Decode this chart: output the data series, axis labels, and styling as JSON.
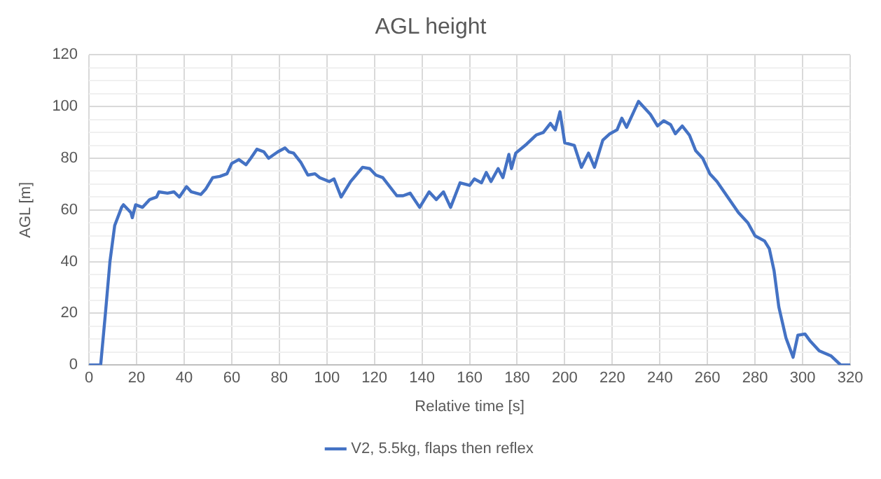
{
  "chart_data": {
    "type": "line",
    "title": "AGL height",
    "xlabel": "Relative time [s]",
    "ylabel": "AGL [m]",
    "xlim": [
      0,
      320
    ],
    "xticks": [
      0,
      20,
      40,
      60,
      80,
      100,
      120,
      140,
      160,
      180,
      200,
      220,
      240,
      260,
      280,
      300,
      320
    ],
    "ylim": [
      0,
      120
    ],
    "yticks": [
      0,
      {
        "value": 5,
        "label": null
      },
      {
        "value": 10,
        "label": null
      },
      {
        "value": 15,
        "label": null
      },
      20,
      {
        "value": 25,
        "label": null
      },
      {
        "value": 30,
        "label": null
      },
      {
        "value": 35,
        "label": null
      },
      40,
      {
        "value": 45,
        "label": null
      },
      {
        "value": 50,
        "label": null
      },
      {
        "value": 55,
        "label": null
      },
      60,
      {
        "value": 65,
        "label": null
      },
      {
        "value": 70,
        "label": null
      },
      {
        "value": 75,
        "label": null
      },
      80,
      {
        "value": 85,
        "label": null
      },
      {
        "value": 90,
        "label": null
      },
      {
        "value": 95,
        "label": null
      },
      100,
      {
        "value": 105,
        "label": null
      },
      {
        "value": 110,
        "label": null
      },
      {
        "value": 115,
        "label": null
      },
      120
    ],
    "grid": true,
    "legend": "bottom",
    "marker": "none",
    "line_style": "solid",
    "series": [
      {
        "name": "V2, 5.5kg, flaps then reflex",
        "color": "#4472c4",
        "x": [
          0,
          4.9,
          6.9,
          8.8,
          10.8,
          13.7,
          14.5,
          17.6,
          18.2,
          19.6,
          22.5,
          25.5,
          28.4,
          29.4,
          33,
          35.7,
          38,
          41,
          43,
          47,
          49,
          52,
          55,
          58,
          60,
          63,
          66,
          68,
          70.6,
          73.5,
          75.5,
          79.4,
          82.4,
          84,
          86,
          89,
          92,
          95,
          97,
          101,
          103,
          106,
          110,
          115,
          118,
          120.6,
          123.5,
          129.4,
          132,
          135,
          139,
          143,
          146,
          149,
          152,
          156,
          160,
          162,
          165,
          167,
          169,
          172,
          174,
          176.5,
          177.6,
          179.4,
          184,
          188,
          191,
          194,
          196,
          198,
          200,
          204,
          207,
          210,
          212.5,
          216,
          219,
          222,
          224,
          226,
          229,
          231,
          236,
          239,
          241.6,
          244.5,
          246.5,
          249.4,
          252.4,
          255,
          258,
          261,
          264,
          267,
          270,
          273,
          277,
          280,
          284,
          286,
          288,
          290,
          293,
          296,
          298,
          301,
          303,
          307,
          312,
          316,
          320
        ],
        "values": [
          0,
          0,
          20,
          40,
          54,
          61,
          62,
          59,
          57,
          62,
          61,
          64,
          65,
          67,
          66.5,
          67,
          65,
          69,
          67,
          66,
          68,
          72.5,
          73,
          74,
          78,
          79.5,
          77.5,
          80,
          83.5,
          82.5,
          80,
          82.5,
          84,
          82.5,
          82,
          78.5,
          73.5,
          74,
          72.5,
          71,
          72,
          65,
          71,
          76.5,
          76,
          73.5,
          72.5,
          65.5,
          65.5,
          66.5,
          61,
          67,
          64,
          67,
          61,
          70.5,
          69.5,
          72,
          70.5,
          74.5,
          71,
          76,
          72.5,
          81.5,
          76,
          82,
          85.5,
          89,
          90,
          93.5,
          91,
          98,
          86,
          85,
          76.5,
          82,
          76.5,
          87,
          89.5,
          91,
          95.5,
          92,
          98,
          102,
          97,
          92.5,
          94.5,
          93,
          89.5,
          92.5,
          89,
          83,
          80,
          74,
          71,
          67,
          63,
          59,
          55,
          50,
          48,
          45,
          36.5,
          22.5,
          10.5,
          3,
          11.5,
          12,
          9.5,
          5.5,
          3.5,
          0,
          0
        ]
      }
    ]
  }
}
